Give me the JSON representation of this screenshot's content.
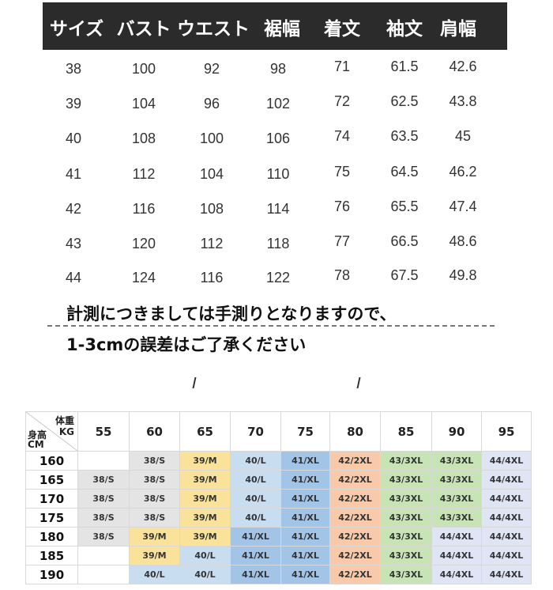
{
  "size_table": {
    "headers": [
      "サイズ",
      "バスト",
      "ウエスト",
      "裾幅",
      "着文",
      "袖文",
      "肩幅"
    ],
    "rows": [
      [
        "38",
        "100",
        "92",
        "98",
        "71",
        "61.5",
        "42.6"
      ],
      [
        "39",
        "104",
        "96",
        "102",
        "72",
        "62.5",
        "43.8"
      ],
      [
        "40",
        "108",
        "100",
        "106",
        "74",
        "63.5",
        "45"
      ],
      [
        "41",
        "112",
        "104",
        "110",
        "75",
        "64.5",
        "46.2"
      ],
      [
        "42",
        "116",
        "108",
        "114",
        "76",
        "65.5",
        "47.4"
      ],
      [
        "43",
        "120",
        "112",
        "118",
        "77",
        "66.5",
        "48.6"
      ],
      [
        "44",
        "124",
        "116",
        "122",
        "78",
        "67.5",
        "49.8"
      ]
    ]
  },
  "note": {
    "line1": "計測につきましては手測りとなりますので、",
    "line2": "1-3cmの誤差はご了承ください"
  },
  "fit_chart": {
    "corner": {
      "weight_label": "体重",
      "kg_label": "KG",
      "height_label": "身高",
      "cm_label": "CM"
    },
    "weights": [
      "55",
      "60",
      "65",
      "70",
      "75",
      "80",
      "85",
      "90",
      "95"
    ],
    "rows": [
      {
        "height": "160",
        "cells": [
          "",
          "38/S",
          "39/M",
          "40/L",
          "41/XL",
          "42/2XL",
          "43/3XL",
          "43/3XL",
          "44/4XL"
        ]
      },
      {
        "height": "165",
        "cells": [
          "38/S",
          "38/S",
          "39/M",
          "40/L",
          "41/XL",
          "42/2XL",
          "43/3XL",
          "43/3XL",
          "44/4XL"
        ]
      },
      {
        "height": "170",
        "cells": [
          "38/S",
          "38/S",
          "39/M",
          "40/L",
          "41/XL",
          "42/2XL",
          "43/3XL",
          "43/3XL",
          "44/4XL"
        ]
      },
      {
        "height": "175",
        "cells": [
          "38/S",
          "38/S",
          "39/M",
          "40/L",
          "41/XL",
          "42/2XL",
          "43/3XL",
          "43/3XL",
          "44/4XL"
        ]
      },
      {
        "height": "180",
        "cells": [
          "38/S",
          "39/M",
          "39/M",
          "41/XL",
          "41/XL",
          "42/2XL",
          "43/3XL",
          "44/4XL",
          "44/4XL"
        ]
      },
      {
        "height": "185",
        "cells": [
          "",
          "39/M",
          "40/L",
          "41/XL",
          "41/XL",
          "42/2XL",
          "43/3XL",
          "44/4XL",
          "44/4XL"
        ]
      },
      {
        "height": "190",
        "cells": [
          "",
          "40/L",
          "40/L",
          "41/XL",
          "41/XL",
          "42/2XL",
          "43/3XL",
          "44/4XL",
          "44/4XL"
        ]
      }
    ],
    "size_colors": {
      "38/S": "#e4e4e4",
      "39/M": "#fbe29a",
      "40/L": "#c9ddf1",
      "41/XL": "#a2c4e7",
      "42/2XL": "#f8caa9",
      "43/3XL": "#c8e3b6",
      "44/4XL": "#dfe5f4"
    }
  }
}
